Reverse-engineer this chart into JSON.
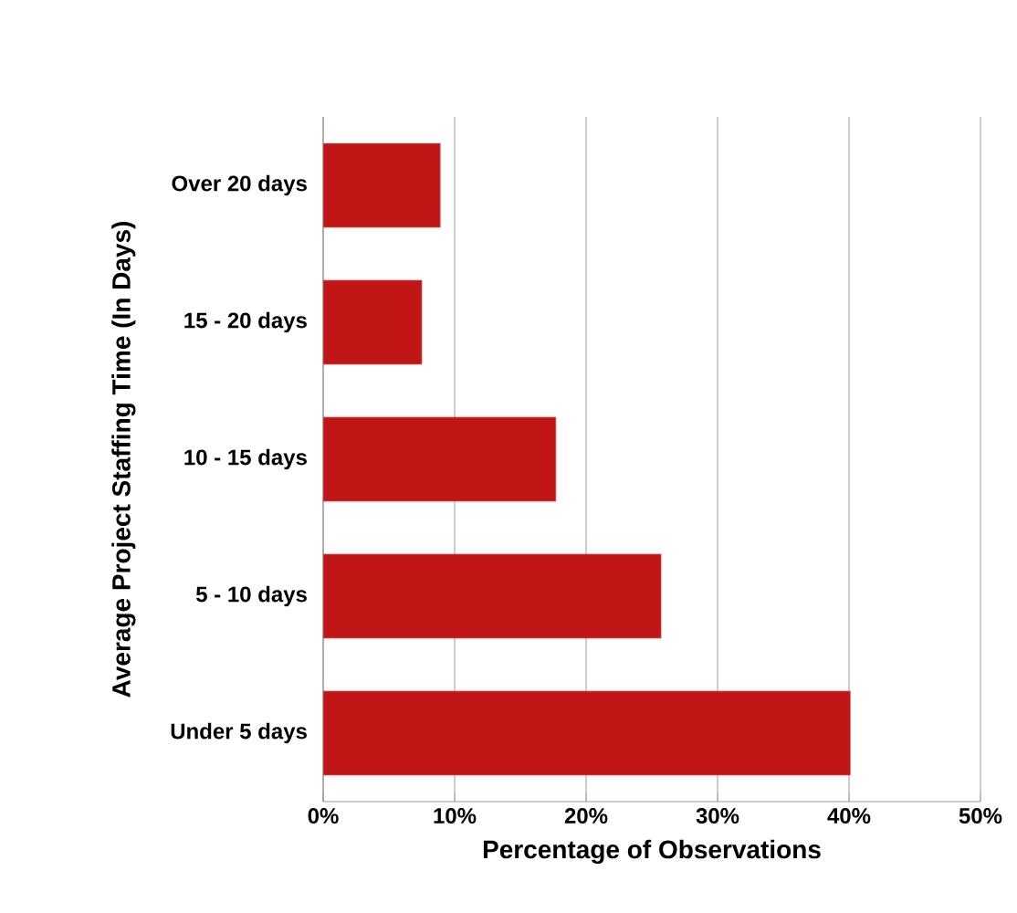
{
  "chart_data": {
    "type": "bar",
    "orientation": "horizontal",
    "categories": [
      "Over 20 days",
      "15 - 20 days",
      "10 - 15 days",
      "5 - 10 days",
      "Under 5 days"
    ],
    "values": [
      8.9,
      7.5,
      17.7,
      25.7,
      40.1
    ],
    "color": "#c01616",
    "xlim": [
      0,
      50
    ],
    "xticks": [
      {
        "value": 0,
        "label": "0%"
      },
      {
        "value": 10,
        "label": "10%"
      },
      {
        "value": 20,
        "label": "20%"
      },
      {
        "value": 30,
        "label": "30%"
      },
      {
        "value": 40,
        "label": "40%"
      },
      {
        "value": 50,
        "label": "50%"
      }
    ],
    "grid": "x",
    "xlabel": "Percentage of Observations",
    "ylabel": "Average Project Staffing Time (In Days)"
  }
}
